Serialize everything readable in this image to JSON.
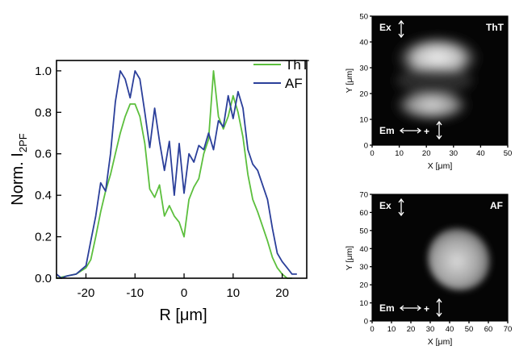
{
  "chart_data": [
    {
      "type": "line",
      "xlabel": "R [μm]",
      "ylabel": "Norm. I",
      "ylabel_sub": "2PF",
      "xlim": [
        -26,
        25
      ],
      "ylim": [
        0.0,
        1.05
      ],
      "xticks": [
        -20,
        -10,
        0,
        10,
        20
      ],
      "xtick_labels": [
        "-20",
        "-10",
        "0",
        "10",
        "20"
      ],
      "yticks": [
        0.0,
        0.2,
        0.4,
        0.6,
        0.8,
        1.0
      ],
      "ytick_labels": [
        "0.0",
        "0.2",
        "0.4",
        "0.6",
        "0.8",
        "1.0"
      ],
      "legend_position": "top-right",
      "series": [
        {
          "name": "ThT",
          "color": "#5cbf3d",
          "x": [
            -26,
            -24,
            -22,
            -20,
            -19,
            -18,
            -17,
            -16,
            -15,
            -14,
            -13,
            -12,
            -11,
            -10,
            -9,
            -8,
            -7,
            -6,
            -5,
            -4,
            -3,
            -2,
            -1,
            0,
            1,
            2,
            3,
            4,
            5,
            6,
            7,
            8,
            9,
            10,
            11,
            12,
            13,
            14,
            15,
            16,
            17,
            18,
            19,
            20,
            21,
            22
          ],
          "y": [
            0.0,
            0.01,
            0.02,
            0.05,
            0.09,
            0.2,
            0.32,
            0.42,
            0.5,
            0.6,
            0.7,
            0.78,
            0.84,
            0.84,
            0.78,
            0.65,
            0.43,
            0.39,
            0.45,
            0.3,
            0.35,
            0.3,
            0.27,
            0.2,
            0.38,
            0.44,
            0.48,
            0.6,
            0.67,
            1.0,
            0.78,
            0.72,
            0.78,
            0.88,
            0.8,
            0.68,
            0.5,
            0.38,
            0.32,
            0.25,
            0.18,
            0.1,
            0.05,
            0.02,
            0.0,
            0.0
          ]
        },
        {
          "name": "AF",
          "color": "#2b3f9a",
          "x": [
            -26,
            -25,
            -24,
            -22,
            -20,
            -19,
            -18,
            -17,
            -16,
            -15,
            -14,
            -13,
            -12,
            -11,
            -10,
            -9,
            -8,
            -7,
            -6,
            -5,
            -4,
            -3,
            -2,
            -1,
            0,
            1,
            2,
            3,
            4,
            5,
            6,
            7,
            8,
            9,
            10,
            11,
            12,
            13,
            14,
            15,
            16,
            17,
            18,
            19,
            20,
            21,
            22,
            23
          ],
          "y": [
            0.02,
            0.0,
            0.01,
            0.02,
            0.06,
            0.18,
            0.3,
            0.46,
            0.42,
            0.6,
            0.85,
            1.0,
            0.96,
            0.87,
            1.0,
            0.96,
            0.8,
            0.63,
            0.82,
            0.66,
            0.52,
            0.66,
            0.4,
            0.65,
            0.41,
            0.6,
            0.56,
            0.64,
            0.62,
            0.7,
            0.62,
            0.76,
            0.73,
            0.88,
            0.77,
            0.9,
            0.82,
            0.62,
            0.55,
            0.52,
            0.45,
            0.38,
            0.24,
            0.12,
            0.08,
            0.05,
            0.02,
            0.02
          ]
        }
      ]
    },
    {
      "type": "heatmap",
      "xlabel": "X [μm]",
      "ylabel": "Y [μm]",
      "xlim": [
        0,
        50
      ],
      "ylim": [
        0,
        50
      ],
      "xticks": [
        0,
        10,
        20,
        30,
        40,
        50
      ],
      "yticks": [
        0,
        10,
        20,
        30,
        40,
        50
      ],
      "annotations": [
        "Ex",
        "ThT",
        "Em",
        "+"
      ]
    },
    {
      "type": "heatmap",
      "xlabel": "X [μm]",
      "ylabel": "Y [μm]",
      "xlim": [
        0,
        70
      ],
      "ylim": [
        0,
        70
      ],
      "xticks": [
        0,
        10,
        20,
        30,
        40,
        50,
        60,
        70
      ],
      "yticks": [
        0,
        10,
        20,
        30,
        40,
        50,
        60,
        70
      ],
      "annotations": [
        "Ex",
        "AF",
        "Em",
        "+"
      ]
    }
  ]
}
